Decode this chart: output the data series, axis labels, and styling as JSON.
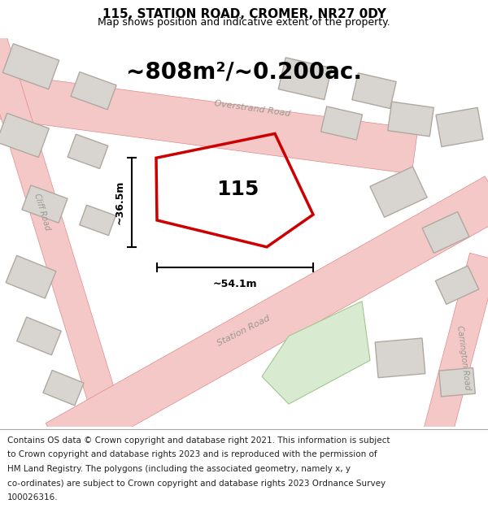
{
  "title": "115, STATION ROAD, CROMER, NR27 0DY",
  "subtitle": "Map shows position and indicative extent of the property.",
  "area_text": "~808m²/~0.200ac.",
  "label_115": "115",
  "dim_width": "~54.1m",
  "dim_height": "~36.5m",
  "footer_lines": [
    "Contains OS data © Crown copyright and database right 2021. This information is subject",
    "to Crown copyright and database rights 2023 and is reproduced with the permission of",
    "HM Land Registry. The polygons (including the associated geometry, namely x, y",
    "co-ordinates) are subject to Crown copyright and database rights 2023 Ordnance Survey",
    "100026316."
  ],
  "map_bg": "#e8e6e3",
  "road_color": "#f5c8c8",
  "road_edge_color": "#e08888",
  "highlight_color": "#cc0000",
  "building_fill": "#d8d5d0",
  "building_edge": "#b0a8a0",
  "green_fill": "#d8ead0",
  "footer_bg": "#ffffff",
  "title_fontsize": 11,
  "subtitle_fontsize": 9,
  "area_fontsize": 20,
  "label_fontsize": 18,
  "footer_fontsize": 7.5
}
